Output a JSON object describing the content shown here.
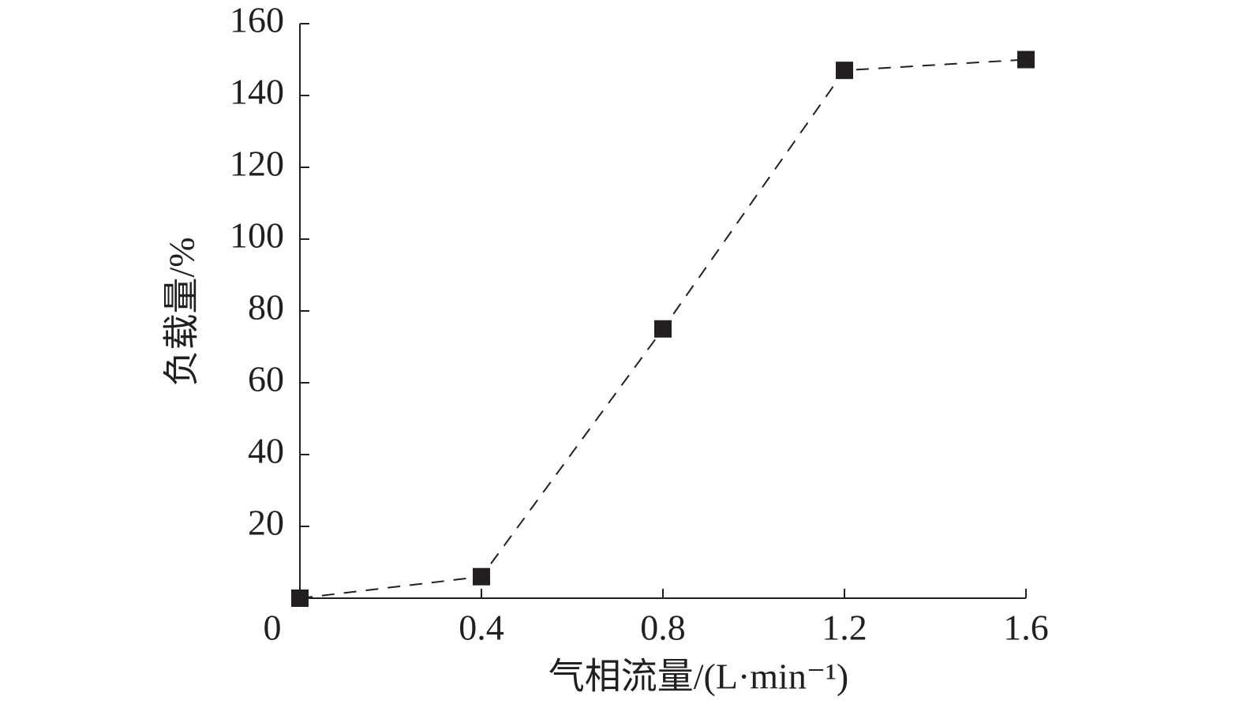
{
  "chart_data": {
    "type": "line",
    "x_label": "气相流量/(L·min⁻¹)",
    "y_label": "负载量/%",
    "x": [
      0,
      0.4,
      0.8,
      1.2,
      1.6
    ],
    "series": [
      {
        "color": "#231f20",
        "values": [
          0,
          6,
          75,
          147,
          150
        ]
      }
    ],
    "xlim": [
      0,
      1.6
    ],
    "xticks": [
      0,
      0.4,
      0.8,
      1.2,
      1.6
    ],
    "ylim": [
      0,
      160
    ],
    "yticks": [
      20,
      40,
      60,
      80,
      100,
      120,
      140,
      160
    ],
    "grid": false,
    "line_style": "dashed",
    "marker": "square"
  }
}
